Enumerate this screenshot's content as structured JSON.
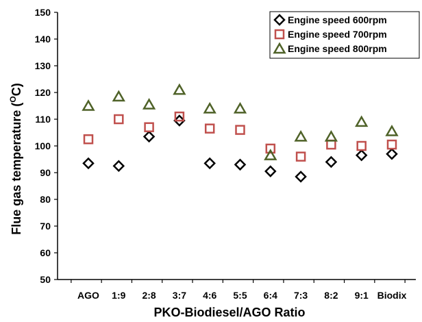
{
  "chart_data": {
    "type": "scatter",
    "categories": [
      "AGO",
      "1:9",
      "2:8",
      "3:7",
      "4:6",
      "5:5",
      "6:4",
      "7:3",
      "8:2",
      "9:1",
      "Biodix"
    ],
    "series": [
      {
        "name": "Engine speed 600rpm",
        "marker": "diamond",
        "color": "#000000",
        "values": [
          93.5,
          92.5,
          103.5,
          109.5,
          93.5,
          93,
          90.5,
          88.5,
          94,
          96.5,
          97
        ]
      },
      {
        "name": "Engine speed 700rpm",
        "marker": "square",
        "color": "#c0504d",
        "values": [
          102.5,
          110,
          107,
          111,
          106.5,
          106,
          99,
          96,
          100.5,
          100,
          100.5
        ]
      },
      {
        "name": "Engine speed 800rpm",
        "marker": "triangle",
        "color": "#4f6228",
        "values": [
          115,
          118.5,
          115.5,
          121,
          114,
          114,
          96.5,
          103.5,
          103.5,
          109,
          105.5
        ]
      }
    ],
    "xlabel": "PKO-Biodiesel/AGO Ratio",
    "ylabel_main": "Flue gas temperature (",
    "ylabel_sup": "O",
    "ylabel_tail": "C)",
    "ylim": [
      50,
      150
    ],
    "yticks": [
      50,
      60,
      70,
      80,
      90,
      100,
      110,
      120,
      130,
      140,
      150
    ],
    "grid": false,
    "legend": "top-right"
  }
}
